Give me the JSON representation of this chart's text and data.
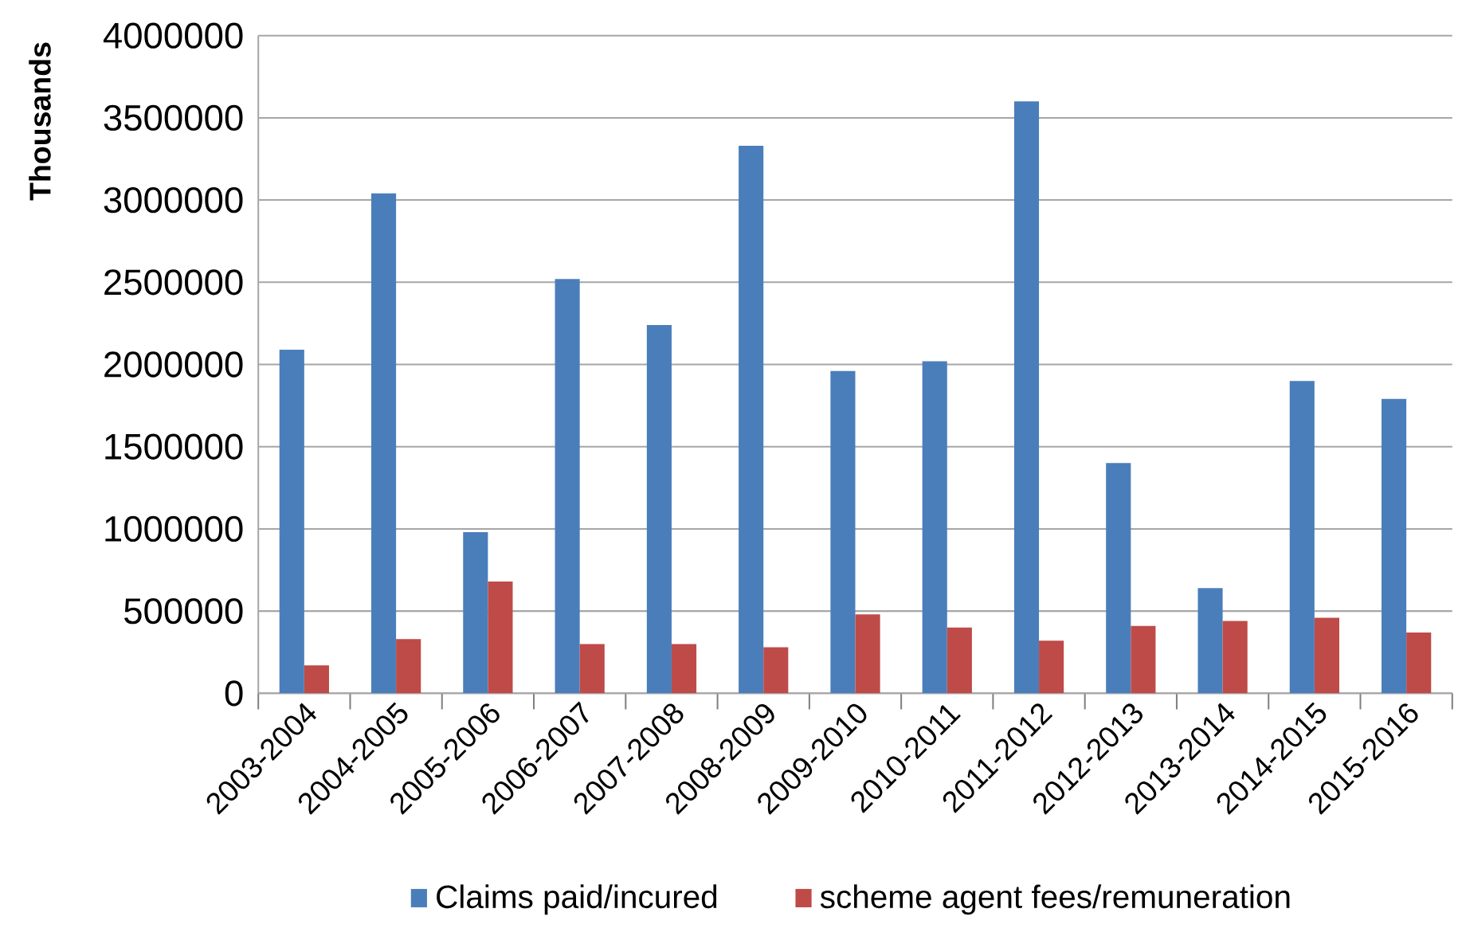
{
  "chart_data": {
    "type": "bar",
    "ylabel": "Thousands",
    "categories": [
      "2003-2004",
      "2004-2005",
      "2005-2006",
      "2006-2007",
      "2007-2008",
      "2008-2009",
      "2009-2010",
      "2010-2011",
      "2011-2012",
      "2012-2013",
      "2013-2014",
      "2014-2015",
      "2015-2016"
    ],
    "series": [
      {
        "name": "Claims paid/incured",
        "color": "#4a7ebb",
        "values": [
          2090000,
          3040000,
          980000,
          2520000,
          2240000,
          3330000,
          1960000,
          2020000,
          3600000,
          1400000,
          640000,
          1900000,
          1790000
        ]
      },
      {
        "name": "scheme agent fees/remuneration",
        "color": "#be4b48",
        "values": [
          170000,
          330000,
          680000,
          300000,
          300000,
          280000,
          480000,
          400000,
          320000,
          410000,
          440000,
          460000,
          370000
        ]
      }
    ],
    "ylim": [
      0,
      4000000
    ],
    "yticks": [
      0,
      500000,
      1000000,
      1500000,
      2000000,
      2500000,
      3000000,
      3500000,
      4000000
    ],
    "grid": "y",
    "legend": "bottom"
  }
}
